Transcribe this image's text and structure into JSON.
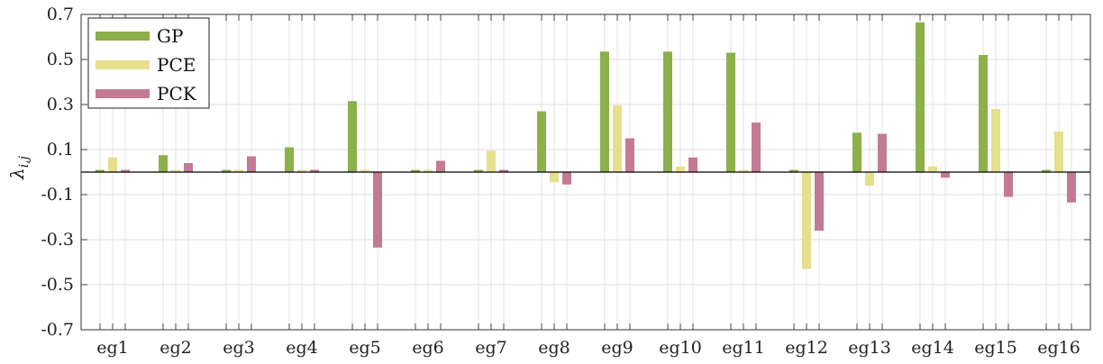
{
  "chart_data": {
    "type": "bar",
    "title": "",
    "xlabel": "",
    "ylabel": "λ_{i,j}",
    "ylabel_main": "λ",
    "ylabel_sub": "i,j",
    "ylim": [
      -0.7,
      0.7
    ],
    "yticks": [
      -0.7,
      -0.5,
      -0.3,
      -0.1,
      0.1,
      0.3,
      0.5,
      0.7
    ],
    "ytick_labels": [
      "-0.7",
      "-0.5",
      "-0.3",
      "-0.1",
      "0.1",
      "0.3",
      "0.5",
      "0.7"
    ],
    "grid": true,
    "legend_position": "top-left",
    "categories": [
      "eg1",
      "eg2",
      "eg3",
      "eg4",
      "eg5",
      "eg6",
      "eg7",
      "eg8",
      "eg9",
      "eg10",
      "eg11",
      "eg12",
      "eg13",
      "eg14",
      "eg15",
      "eg16"
    ],
    "series": [
      {
        "name": "GP",
        "color": "#8cb04a",
        "values": [
          0.01,
          0.075,
          0.01,
          0.11,
          0.315,
          0.01,
          0.01,
          0.27,
          0.535,
          0.535,
          0.53,
          0.01,
          0.175,
          0.665,
          0.52,
          0.01
        ]
      },
      {
        "name": "PCE",
        "color": "#e6df8c",
        "values": [
          0.065,
          0.01,
          0.01,
          0.01,
          0.01,
          0.01,
          0.095,
          -0.045,
          0.295,
          0.025,
          0.01,
          -0.43,
          -0.06,
          0.025,
          0.28,
          0.18
        ]
      },
      {
        "name": "PCK",
        "color": "#c47a91",
        "values": [
          0.01,
          0.04,
          0.07,
          0.01,
          -0.335,
          0.05,
          0.01,
          -0.055,
          0.15,
          0.065,
          0.22,
          -0.26,
          0.17,
          -0.025,
          -0.11,
          -0.135
        ]
      }
    ]
  }
}
